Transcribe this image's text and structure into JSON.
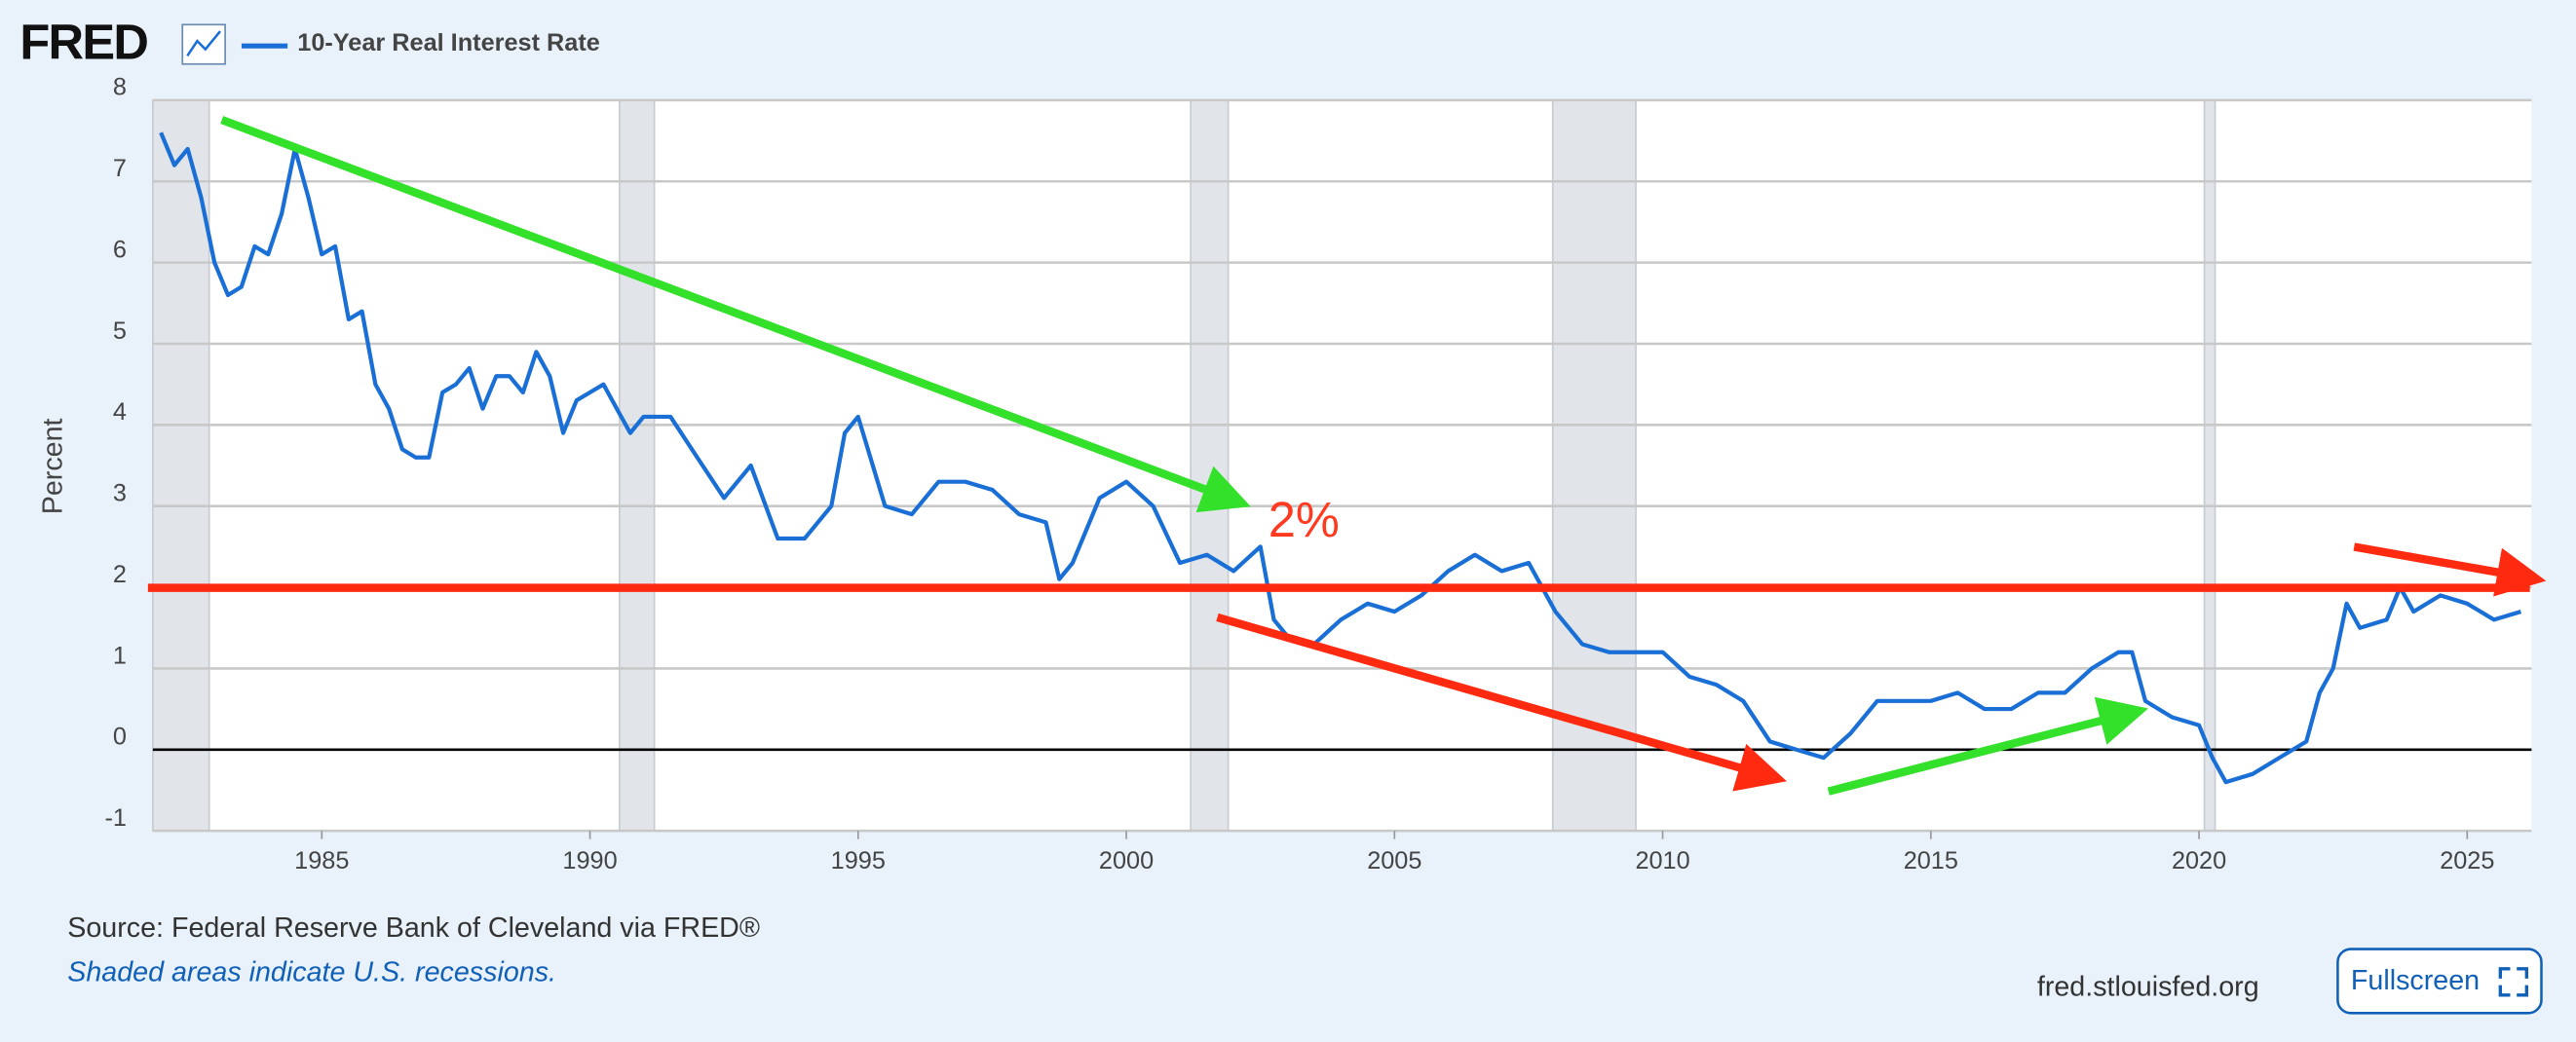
{
  "header": {
    "logo": "FRED",
    "legend": "10-Year Real Interest Rate"
  },
  "chart_data": {
    "type": "line",
    "y_label": "Percent",
    "series": [
      {
        "name": "10-Year Real Interest Rate",
        "color": "#1a6fd6",
        "x": [
          1982.0,
          1982.25,
          1982.5,
          1982.75,
          1983.0,
          1983.25,
          1983.5,
          1983.75,
          1984.0,
          1984.25,
          1984.5,
          1984.75,
          1985.0,
          1985.25,
          1985.5,
          1985.75,
          1986.0,
          1986.25,
          1986.5,
          1986.75,
          1987.0,
          1987.25,
          1987.5,
          1987.75,
          1988.0,
          1988.25,
          1988.5,
          1988.75,
          1989.0,
          1989.25,
          1989.5,
          1989.75,
          1990.0,
          1990.25,
          1990.5,
          1990.75,
          1991.0,
          1991.5,
          1992.0,
          1992.5,
          1993.0,
          1993.5,
          1994.0,
          1994.5,
          1994.75,
          1995.0,
          1995.5,
          1996.0,
          1996.5,
          1997.0,
          1997.5,
          1998.0,
          1998.5,
          1998.75,
          1999.0,
          1999.5,
          2000.0,
          2000.5,
          2001.0,
          2001.5,
          2002.0,
          2002.5,
          2002.75,
          2003.0,
          2003.5,
          2004.0,
          2004.5,
          2005.0,
          2005.5,
          2006.0,
          2006.5,
          2007.0,
          2007.5,
          2008.0,
          2008.5,
          2009.0,
          2009.5,
          2010.0,
          2010.5,
          2011.0,
          2011.5,
          2012.0,
          2012.5,
          2013.0,
          2013.5,
          2014.0,
          2014.5,
          2015.0,
          2015.5,
          2016.0,
          2016.5,
          2017.0,
          2017.5,
          2018.0,
          2018.5,
          2018.75,
          2019.0,
          2019.5,
          2020.0,
          2020.25,
          2020.5,
          2021.0,
          2021.5,
          2022.0,
          2022.25,
          2022.5,
          2022.75,
          2023.0,
          2023.5,
          2023.75,
          2024.0,
          2024.5,
          2025.0,
          2025.5,
          2026.0
        ],
        "values": [
          7.6,
          7.2,
          7.4,
          6.8,
          6.0,
          5.6,
          5.7,
          6.2,
          6.1,
          6.6,
          7.4,
          6.8,
          6.1,
          6.2,
          5.3,
          5.4,
          4.5,
          4.2,
          3.7,
          3.6,
          3.6,
          4.4,
          4.5,
          4.7,
          4.2,
          4.6,
          4.6,
          4.4,
          4.9,
          4.6,
          3.9,
          4.3,
          4.4,
          4.5,
          4.2,
          3.9,
          4.1,
          4.1,
          3.6,
          3.1,
          3.5,
          2.6,
          2.6,
          3.0,
          3.9,
          4.1,
          3.0,
          2.9,
          3.3,
          3.3,
          3.2,
          2.9,
          2.8,
          2.1,
          2.3,
          3.1,
          3.3,
          3.0,
          2.3,
          2.4,
          2.2,
          2.5,
          1.6,
          1.4,
          1.3,
          1.6,
          1.8,
          1.7,
          1.9,
          2.2,
          2.4,
          2.2,
          2.3,
          1.7,
          1.3,
          1.2,
          1.2,
          1.2,
          0.9,
          0.8,
          0.6,
          0.1,
          0.0,
          -0.1,
          0.2,
          0.6,
          0.6,
          0.6,
          0.7,
          0.5,
          0.5,
          0.7,
          0.7,
          1.0,
          1.2,
          1.2,
          0.6,
          0.4,
          0.3,
          -0.1,
          -0.4,
          -0.3,
          -0.1,
          0.1,
          0.7,
          1.0,
          1.8,
          1.5,
          1.6,
          2.0,
          1.7,
          1.9,
          1.8,
          1.6,
          1.7
        ]
      }
    ],
    "recessions": [
      [
        1981.85,
        1982.9
      ],
      [
        1990.55,
        1991.2
      ],
      [
        2001.2,
        2001.9
      ],
      [
        2007.95,
        2009.5
      ],
      [
        2020.1,
        2020.3
      ]
    ],
    "xlim": [
      1981.85,
      2026.2
    ],
    "xticks": [
      1985,
      1990,
      1995,
      2000,
      2005,
      2010,
      2015,
      2020,
      2025
    ],
    "ylim": [
      -1,
      8
    ],
    "yticks": [
      -1,
      0,
      1,
      2,
      3,
      4,
      5,
      6,
      7,
      8
    ],
    "grid": true,
    "annotations": [
      "2%"
    ]
  },
  "footer": {
    "source": "Source: Federal Reserve Bank of Cleveland via FRED®",
    "note": "Shaded areas indicate U.S. recessions.",
    "site": "fred.stlouisfed.org",
    "button": "Fullscreen"
  }
}
